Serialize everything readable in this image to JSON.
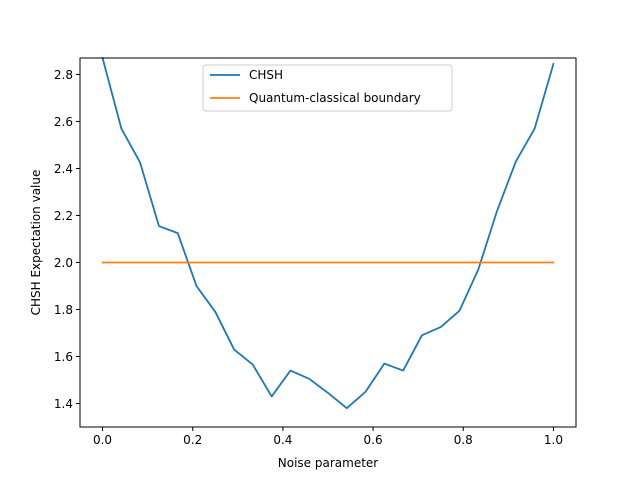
{
  "chart_data": {
    "type": "line",
    "title": "",
    "xlabel": "Noise parameter",
    "ylabel": "CHSH Expectation value",
    "xlim": [
      -0.05,
      1.05
    ],
    "ylim": [
      1.3,
      2.87
    ],
    "xticks": [
      "0.0",
      "0.2",
      "0.4",
      "0.6",
      "0.8",
      "1.0"
    ],
    "yticks": [
      "1.4",
      "1.6",
      "1.8",
      "2.0",
      "2.2",
      "2.4",
      "2.6",
      "2.8"
    ],
    "grid": false,
    "legend_position": "upper center",
    "series": [
      {
        "name": "CHSH",
        "color": "#1f77b4",
        "x": [
          0.0,
          0.0417,
          0.0833,
          0.125,
          0.1667,
          0.2083,
          0.25,
          0.2917,
          0.3333,
          0.375,
          0.4167,
          0.4583,
          0.5,
          0.5417,
          0.5833,
          0.625,
          0.6667,
          0.7083,
          0.75,
          0.7917,
          0.8333,
          0.875,
          0.9167,
          0.9583,
          1.0
        ],
        "y": [
          2.87,
          2.57,
          2.425,
          2.155,
          2.125,
          1.9,
          1.79,
          1.63,
          1.565,
          1.43,
          1.54,
          1.505,
          1.445,
          1.38,
          1.45,
          1.57,
          1.54,
          1.69,
          1.725,
          1.795,
          1.97,
          2.22,
          2.43,
          2.57,
          2.845
        ]
      },
      {
        "name": "Quantum-classical boundary",
        "color": "#ff7f0e",
        "x": [
          0.0,
          1.0
        ],
        "y": [
          2.0,
          2.0
        ]
      }
    ]
  }
}
